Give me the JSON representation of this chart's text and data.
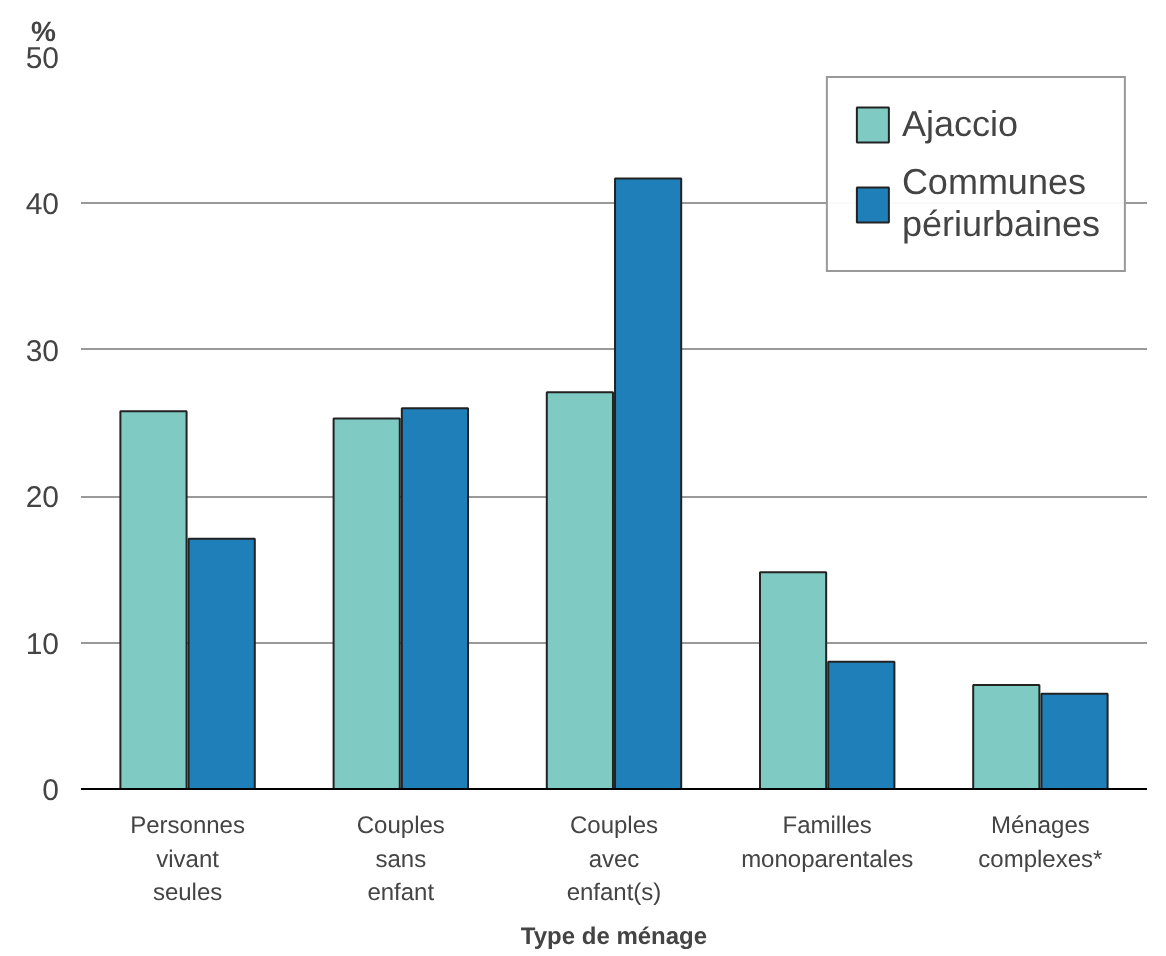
{
  "chart_data": {
    "type": "bar",
    "xlabel": "Type de ménage",
    "ylabel": "%",
    "categories": [
      "Personnes vivant seules",
      "Couples sans enfant",
      "Couples avec enfant(s)",
      "Familles monoparentales",
      "Ménages complexes*"
    ],
    "series": [
      {
        "name": "Ajaccio",
        "color": "#7fcbc4",
        "values": [
          25.8,
          25.3,
          27.1,
          14.8,
          7.1
        ]
      },
      {
        "name": "Communes périurbaines",
        "color": "#1f7fb8",
        "values": [
          17.1,
          26.0,
          41.7,
          8.7,
          6.5
        ]
      }
    ],
    "ylim": [
      0,
      50
    ],
    "yticks": [
      0,
      10,
      20,
      30,
      40,
      50
    ],
    "grid": "y",
    "legend": "top right"
  }
}
